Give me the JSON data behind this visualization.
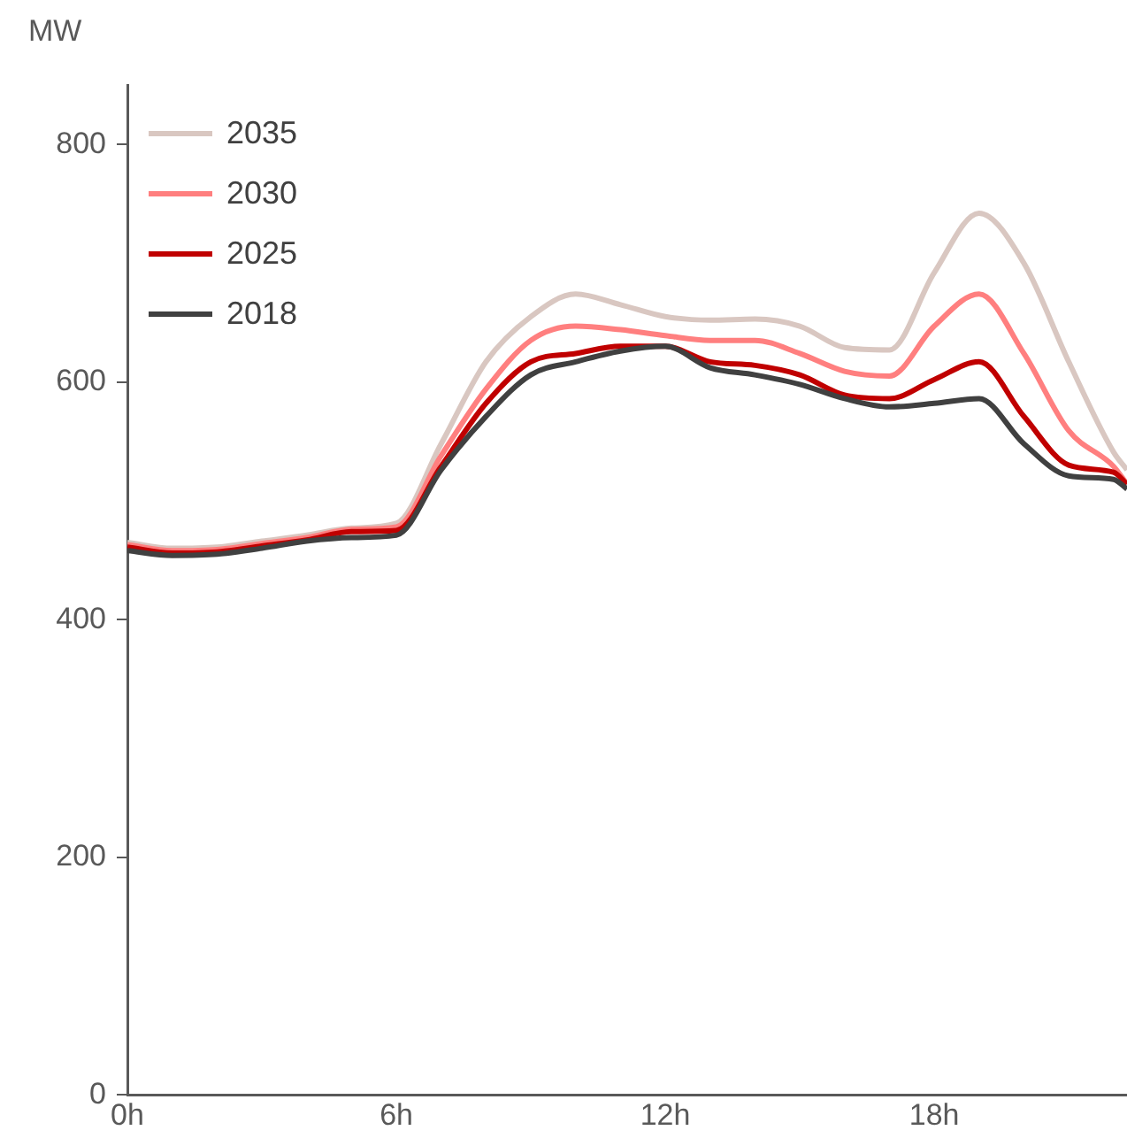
{
  "chart_data": {
    "type": "line",
    "ylabel": "MW",
    "x": [
      0,
      1,
      2,
      3,
      4,
      5,
      6,
      7,
      8,
      9,
      10,
      11,
      12,
      13,
      14,
      15,
      16,
      17,
      18,
      19,
      20,
      21,
      22,
      22.3
    ],
    "series": [
      {
        "name": "2035",
        "color": "#d9c7c1",
        "values": [
          465,
          460,
          461,
          466,
          471,
          477,
          481,
          548,
          617,
          655,
          674,
          665,
          655,
          652,
          653,
          647,
          629,
          627,
          692,
          742,
          700,
          617,
          541,
          526
        ]
      },
      {
        "name": "2030",
        "color": "#ff7f7f",
        "values": [
          463,
          458,
          459,
          464,
          469,
          476,
          478,
          538,
          594,
          635,
          647,
          644,
          639,
          635,
          635,
          624,
          609,
          605,
          647,
          674,
          624,
          559,
          529,
          514
        ]
      },
      {
        "name": "2025",
        "color": "#c00000",
        "values": [
          461,
          456,
          457,
          462,
          467,
          474,
          475,
          529,
          582,
          617,
          624,
          630,
          630,
          617,
          614,
          606,
          589,
          586,
          602,
          617,
          571,
          530,
          524,
          514
        ]
      },
      {
        "name": "2018",
        "color": "#404040",
        "values": [
          458,
          454,
          455,
          460,
          466,
          469,
          471,
          526,
          571,
          606,
          617,
          626,
          630,
          612,
          606,
          598,
          586,
          579,
          582,
          586,
          548,
          521,
          518,
          510
        ]
      }
    ],
    "xlim": [
      0,
      22.3
    ],
    "xticks": [
      {
        "value": 0,
        "label": "0h"
      },
      {
        "value": 6,
        "label": "6h"
      },
      {
        "value": 12,
        "label": "12h"
      },
      {
        "value": 18,
        "label": "18h"
      }
    ],
    "ylim": [
      0,
      850
    ],
    "yticks": [
      0,
      200,
      400,
      600,
      800
    ],
    "grid": false,
    "legend": "top left",
    "marker": "none",
    "line_style": "solid"
  }
}
